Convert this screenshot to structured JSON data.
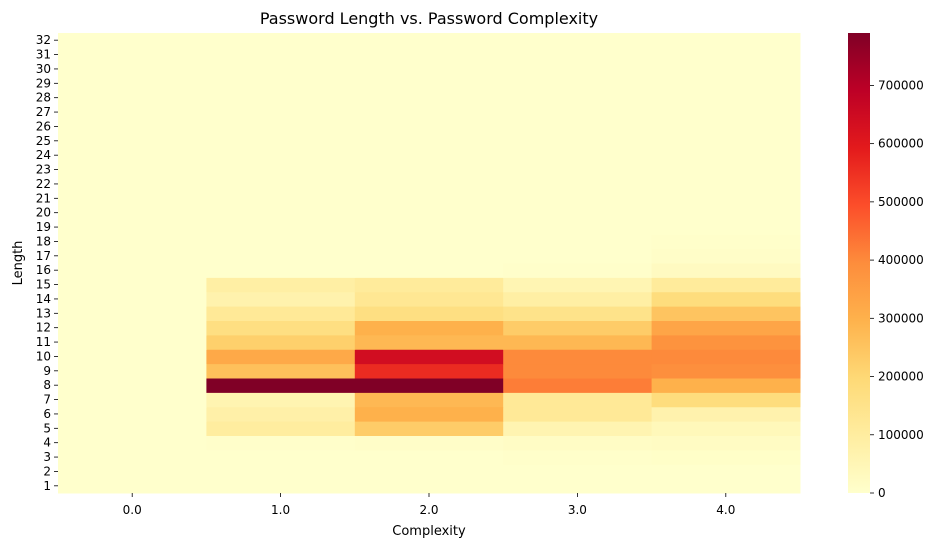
{
  "chart_data": {
    "type": "heatmap",
    "title": "Password Length vs. Password Complexity",
    "xlabel": "Complexity",
    "ylabel": "Length",
    "x_categories": [
      "0.0",
      "1.0",
      "2.0",
      "3.0",
      "4.0"
    ],
    "y_categories": [
      "1",
      "2",
      "3",
      "4",
      "5",
      "6",
      "7",
      "8",
      "9",
      "10",
      "11",
      "12",
      "13",
      "14",
      "15",
      "16",
      "17",
      "18",
      "19",
      "20",
      "21",
      "22",
      "23",
      "24",
      "25",
      "26",
      "27",
      "28",
      "29",
      "30",
      "31",
      "32"
    ],
    "colormap": "YlOrRd",
    "value_range": [
      0,
      790000
    ],
    "colorbar_ticks": [
      0,
      100000,
      200000,
      300000,
      400000,
      500000,
      600000,
      700000
    ],
    "values": [
      [
        0,
        0,
        0,
        0,
        0
      ],
      [
        0,
        0,
        0,
        0,
        0
      ],
      [
        0,
        0,
        0,
        5000,
        8000
      ],
      [
        0,
        5000,
        10000,
        15000,
        20000
      ],
      [
        0,
        100000,
        230000,
        60000,
        40000
      ],
      [
        0,
        80000,
        300000,
        120000,
        70000
      ],
      [
        0,
        60000,
        280000,
        120000,
        180000
      ],
      [
        0,
        790000,
        790000,
        420000,
        300000
      ],
      [
        0,
        260000,
        560000,
        400000,
        390000
      ],
      [
        0,
        320000,
        640000,
        400000,
        400000
      ],
      [
        0,
        220000,
        280000,
        280000,
        380000
      ],
      [
        0,
        170000,
        300000,
        230000,
        330000
      ],
      [
        0,
        120000,
        170000,
        150000,
        250000
      ],
      [
        0,
        70000,
        130000,
        90000,
        180000
      ],
      [
        0,
        90000,
        110000,
        55000,
        110000
      ],
      [
        0,
        0,
        0,
        5000,
        25000
      ],
      [
        0,
        0,
        0,
        0,
        10000
      ],
      [
        0,
        0,
        0,
        0,
        5000
      ],
      [
        0,
        0,
        0,
        0,
        0
      ],
      [
        0,
        0,
        0,
        0,
        0
      ],
      [
        0,
        0,
        0,
        0,
        0
      ],
      [
        0,
        0,
        0,
        0,
        0
      ],
      [
        0,
        0,
        0,
        0,
        0
      ],
      [
        0,
        0,
        0,
        0,
        0
      ],
      [
        0,
        0,
        0,
        0,
        0
      ],
      [
        0,
        0,
        0,
        0,
        0
      ],
      [
        0,
        0,
        0,
        0,
        0
      ],
      [
        0,
        0,
        0,
        0,
        0
      ],
      [
        0,
        0,
        0,
        0,
        0
      ],
      [
        0,
        0,
        0,
        0,
        0
      ],
      [
        0,
        0,
        0,
        0,
        0
      ],
      [
        0,
        0,
        0,
        0,
        0
      ]
    ]
  }
}
